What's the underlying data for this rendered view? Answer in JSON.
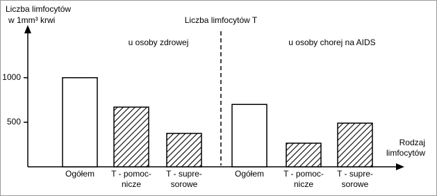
{
  "chart_data": {
    "type": "bar",
    "title": "Liczba limfocytów T",
    "y_label": [
      "Liczba limfocytów",
      "w 1mm³ krwi"
    ],
    "x_label": [
      "Rodzaj",
      "limfocytów"
    ],
    "ylim": [
      0,
      1560
    ],
    "yticks": [
      500,
      1000
    ],
    "categories": [
      [
        "Ogółem"
      ],
      [
        "T - pomoc-",
        "nicze"
      ],
      [
        "T - supre-",
        "sorowe"
      ]
    ],
    "fills": [
      "plain",
      "hatched",
      "hatched"
    ],
    "groups": [
      {
        "name": "u osoby zdrowej",
        "values": [
          1000,
          670,
          375
        ]
      },
      {
        "name": "u osoby chorej na AIDS",
        "values": [
          700,
          265,
          490
        ]
      }
    ]
  }
}
